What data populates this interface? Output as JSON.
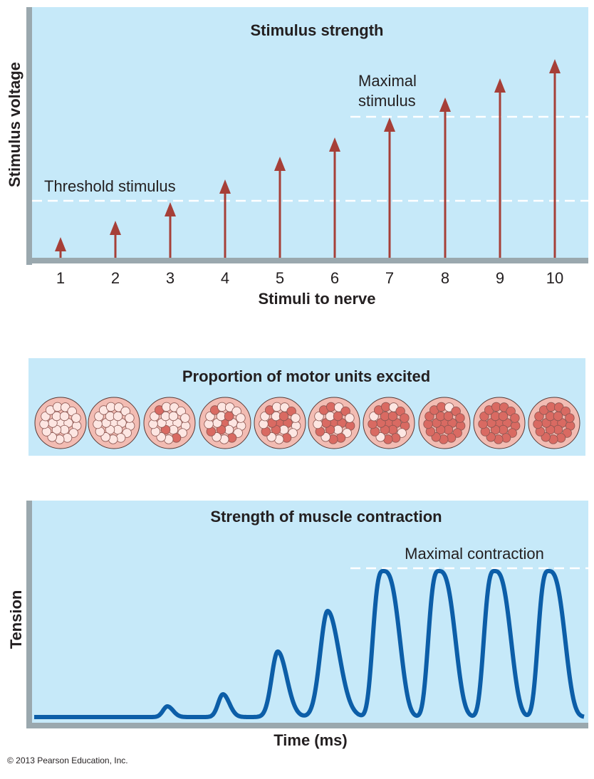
{
  "stimulus_panel": {
    "title": "Stimulus strength",
    "y_label": "Stimulus voltage",
    "x_label": "Stimuli to nerve",
    "stimuli": [
      "1",
      "2",
      "3",
      "4",
      "5",
      "6",
      "7",
      "8",
      "9",
      "10"
    ],
    "threshold_label": "Threshold stimulus",
    "maximal_label_lines": [
      "Maximal",
      "stimulus"
    ]
  },
  "motor_panel": {
    "title": "Proportion of motor units excited"
  },
  "contraction_panel": {
    "title": "Strength of muscle contraction",
    "y_label": "Tension",
    "x_label": "Time (ms)",
    "maximal_label": "Maximal contraction"
  },
  "copyright": "© 2013 Pearson Education, Inc."
}
